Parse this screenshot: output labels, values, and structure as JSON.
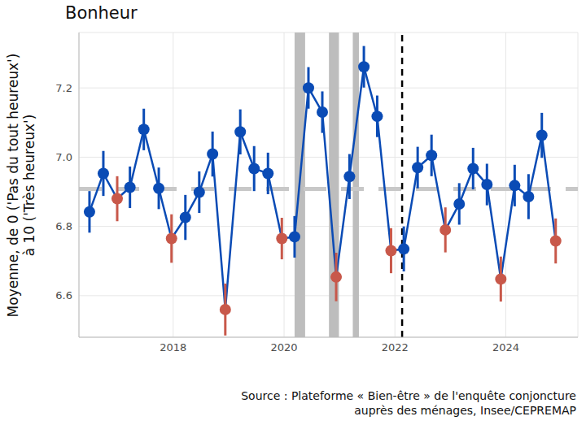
{
  "chart_data": {
    "type": "line",
    "title": "Bonheur",
    "y_label": [
      "Moyenne, de 0 ('Pas du tout heureux')",
      "à 10 ('Très heureux')"
    ],
    "source": [
      "Source : Plateforme « Bien-être » de l'enquête conjoncture",
      "auprès des ménages, Insee/CEPREMAP"
    ],
    "x": [
      2016.49,
      2016.74,
      2016.99,
      2017.22,
      2017.47,
      2017.74,
      2017.97,
      2018.22,
      2018.47,
      2018.71,
      2018.94,
      2019.21,
      2019.46,
      2019.71,
      2019.96,
      2020.19,
      2020.44,
      2020.69,
      2020.94,
      2021.18,
      2021.44,
      2021.68,
      2021.93,
      2022.16,
      2022.41,
      2022.66,
      2022.91,
      2023.16,
      2023.41,
      2023.66,
      2023.91,
      2024.16,
      2024.41,
      2024.65,
      2024.9
    ],
    "values": [
      6.842,
      6.953,
      6.88,
      6.913,
      7.08,
      6.91,
      6.765,
      6.826,
      6.899,
      7.009,
      6.56,
      7.073,
      6.967,
      6.953,
      6.765,
      6.77,
      7.2,
      7.13,
      6.654,
      6.944,
      7.261,
      7.118,
      6.73,
      6.735,
      6.97,
      7.005,
      6.79,
      6.865,
      6.967,
      6.921,
      6.648,
      6.918,
      6.886,
      7.063,
      6.758
    ],
    "error": [
      0.06,
      0.065,
      0.065,
      0.06,
      0.06,
      0.06,
      0.07,
      0.065,
      0.06,
      0.065,
      0.075,
      0.065,
      0.065,
      0.06,
      0.06,
      0.06,
      0.06,
      0.06,
      0.07,
      0.065,
      0.06,
      0.06,
      0.065,
      0.065,
      0.06,
      0.06,
      0.065,
      0.06,
      0.06,
      0.06,
      0.065,
      0.06,
      0.065,
      0.065,
      0.065
    ],
    "color": "#0a4bb5",
    "colors": [
      "#0a4bb5",
      "#0a4bb5",
      "#c8584a",
      "#0a4bb5",
      "#0a4bb5",
      "#0a4bb5",
      "#c8584a",
      "#0a4bb5",
      "#0a4bb5",
      "#0a4bb5",
      "#c8584a",
      "#0a4bb5",
      "#0a4bb5",
      "#0a4bb5",
      "#c8584a",
      "#0a4bb5",
      "#0a4bb5",
      "#0a4bb5",
      "#c8584a",
      "#0a4bb5",
      "#0a4bb5",
      "#0a4bb5",
      "#c8584a",
      "#0a4bb5",
      "#0a4bb5",
      "#0a4bb5",
      "#c8584a",
      "#0a4bb5",
      "#0a4bb5",
      "#0a4bb5",
      "#c8584a",
      "#0a4bb5",
      "#0a4bb5",
      "#0a4bb5",
      "#c8584a"
    ],
    "marker": "circle",
    "mean_line": 6.908,
    "shaded_periods": [
      [
        2020.19,
        2020.38
      ],
      [
        2020.81,
        2020.99
      ],
      [
        2021.24,
        2021.35
      ]
    ],
    "vertical_line": 2022.13,
    "xlim": [
      2016.3,
      2025.3
    ],
    "xticks": [
      2018,
      2020,
      2022,
      2024
    ],
    "ylim": [
      6.48,
      7.36
    ],
    "yticks": [
      6.6,
      6.8,
      {
        "value": 7,
        "label": "7.0"
      },
      7.2
    ],
    "grid": true
  }
}
